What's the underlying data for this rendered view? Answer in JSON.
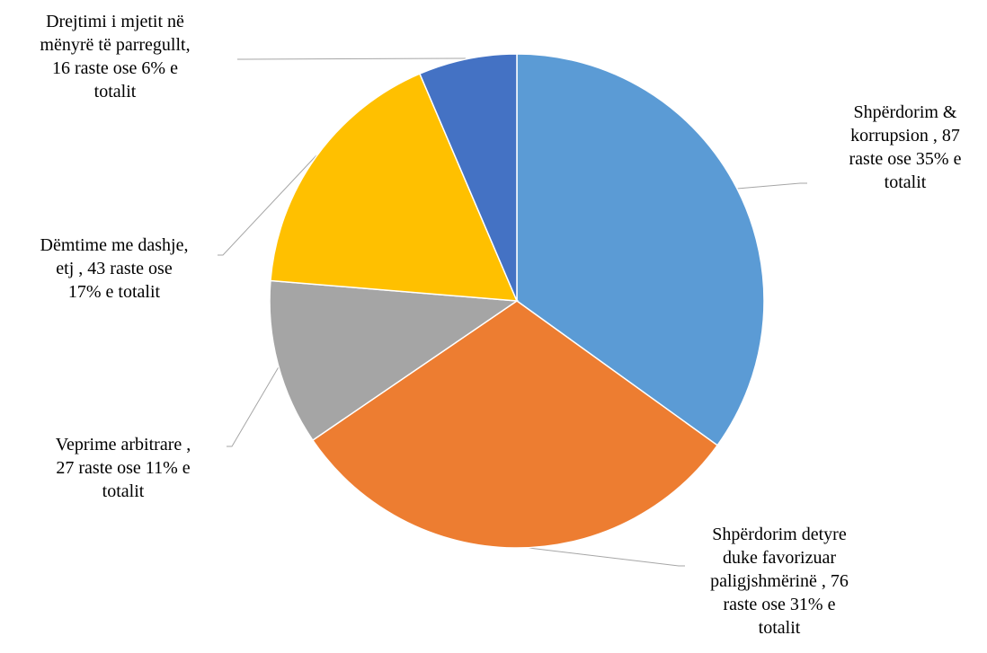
{
  "chart_data": {
    "type": "pie",
    "title": "",
    "start_angle_deg": 0,
    "direction": "clockwise",
    "legend": "none",
    "slices": [
      {
        "category": "Shpërdorim & korrupsion",
        "value": 87,
        "percent": 35,
        "color": "#5B9BD5",
        "label_lines": [
          "Shpërdorim &",
          "korrupsion , 87",
          "raste ose  35% e",
          "totalit"
        ]
      },
      {
        "category": "Shpërdorim detyre duke favorizuar paligjshmërinë",
        "value": 76,
        "percent": 31,
        "color": "#ED7D31",
        "label_lines": [
          "Shpërdorim detyre",
          "duke favorizuar",
          "paligjshmërinë , 76",
          "raste ose 31% e",
          "totalit"
        ]
      },
      {
        "category": "Veprime arbitrare",
        "value": 27,
        "percent": 11,
        "color": "#A5A5A5",
        "label_lines": [
          "Veprime arbitrare ,",
          "27 raste ose  11% e",
          "totalit"
        ]
      },
      {
        "category": "Dëmtime me dashje, etj",
        "value": 43,
        "percent": 17,
        "color": "#FFC000",
        "label_lines": [
          "Dëmtime me dashje,",
          "etj ,  43 raste ose",
          "17% e totalit"
        ]
      },
      {
        "category": "Drejtimi i mjetit në mënyrë të parregullt",
        "value": 16,
        "percent": 6,
        "color": "#4472C4",
        "label_lines": [
          "Drejtimi i mjetit në",
          "mënyrë të parregullt,",
          "16 raste ose 6% e",
          "totalit"
        ]
      }
    ]
  }
}
